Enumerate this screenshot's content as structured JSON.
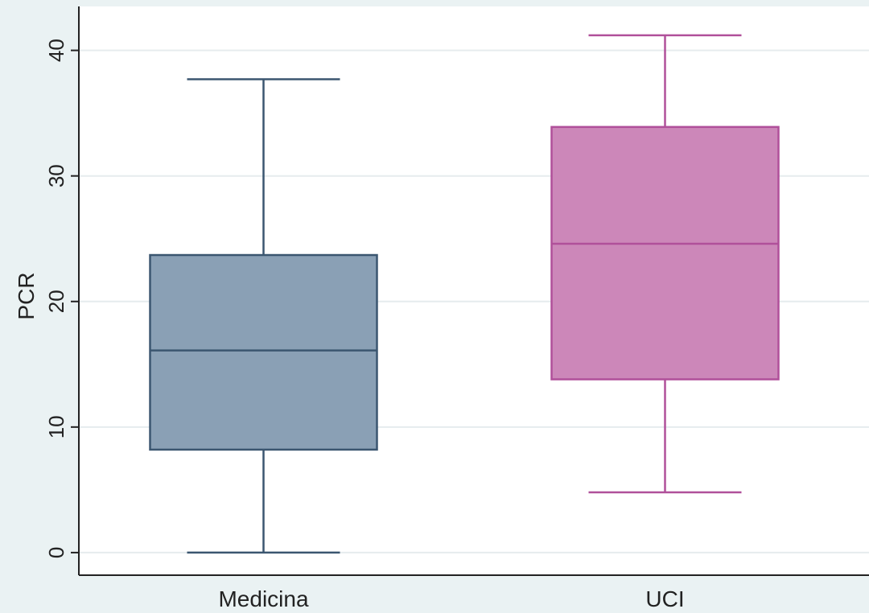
{
  "chart_data": {
    "type": "box",
    "ylabel": "PCR",
    "xlabel": "",
    "ylim": [
      -1.8,
      43.5
    ],
    "yticks": [
      "0",
      "10",
      "20",
      "30",
      "40"
    ],
    "grid": true,
    "categories": [
      "Medicina",
      "UCI"
    ],
    "boxes": [
      {
        "label": "Medicina",
        "whisker_low": 0,
        "q1": 8.2,
        "median": 16.1,
        "q3": 23.7,
        "whisker_high": 37.7,
        "fill": "#8aa0b5",
        "stroke": "#3b5670"
      },
      {
        "label": "UCI",
        "whisker_low": 4.8,
        "q1": 13.8,
        "median": 24.6,
        "q3": 33.9,
        "whisker_high": 41.2,
        "fill": "#cc87b9",
        "stroke": "#b0509a"
      }
    ]
  }
}
